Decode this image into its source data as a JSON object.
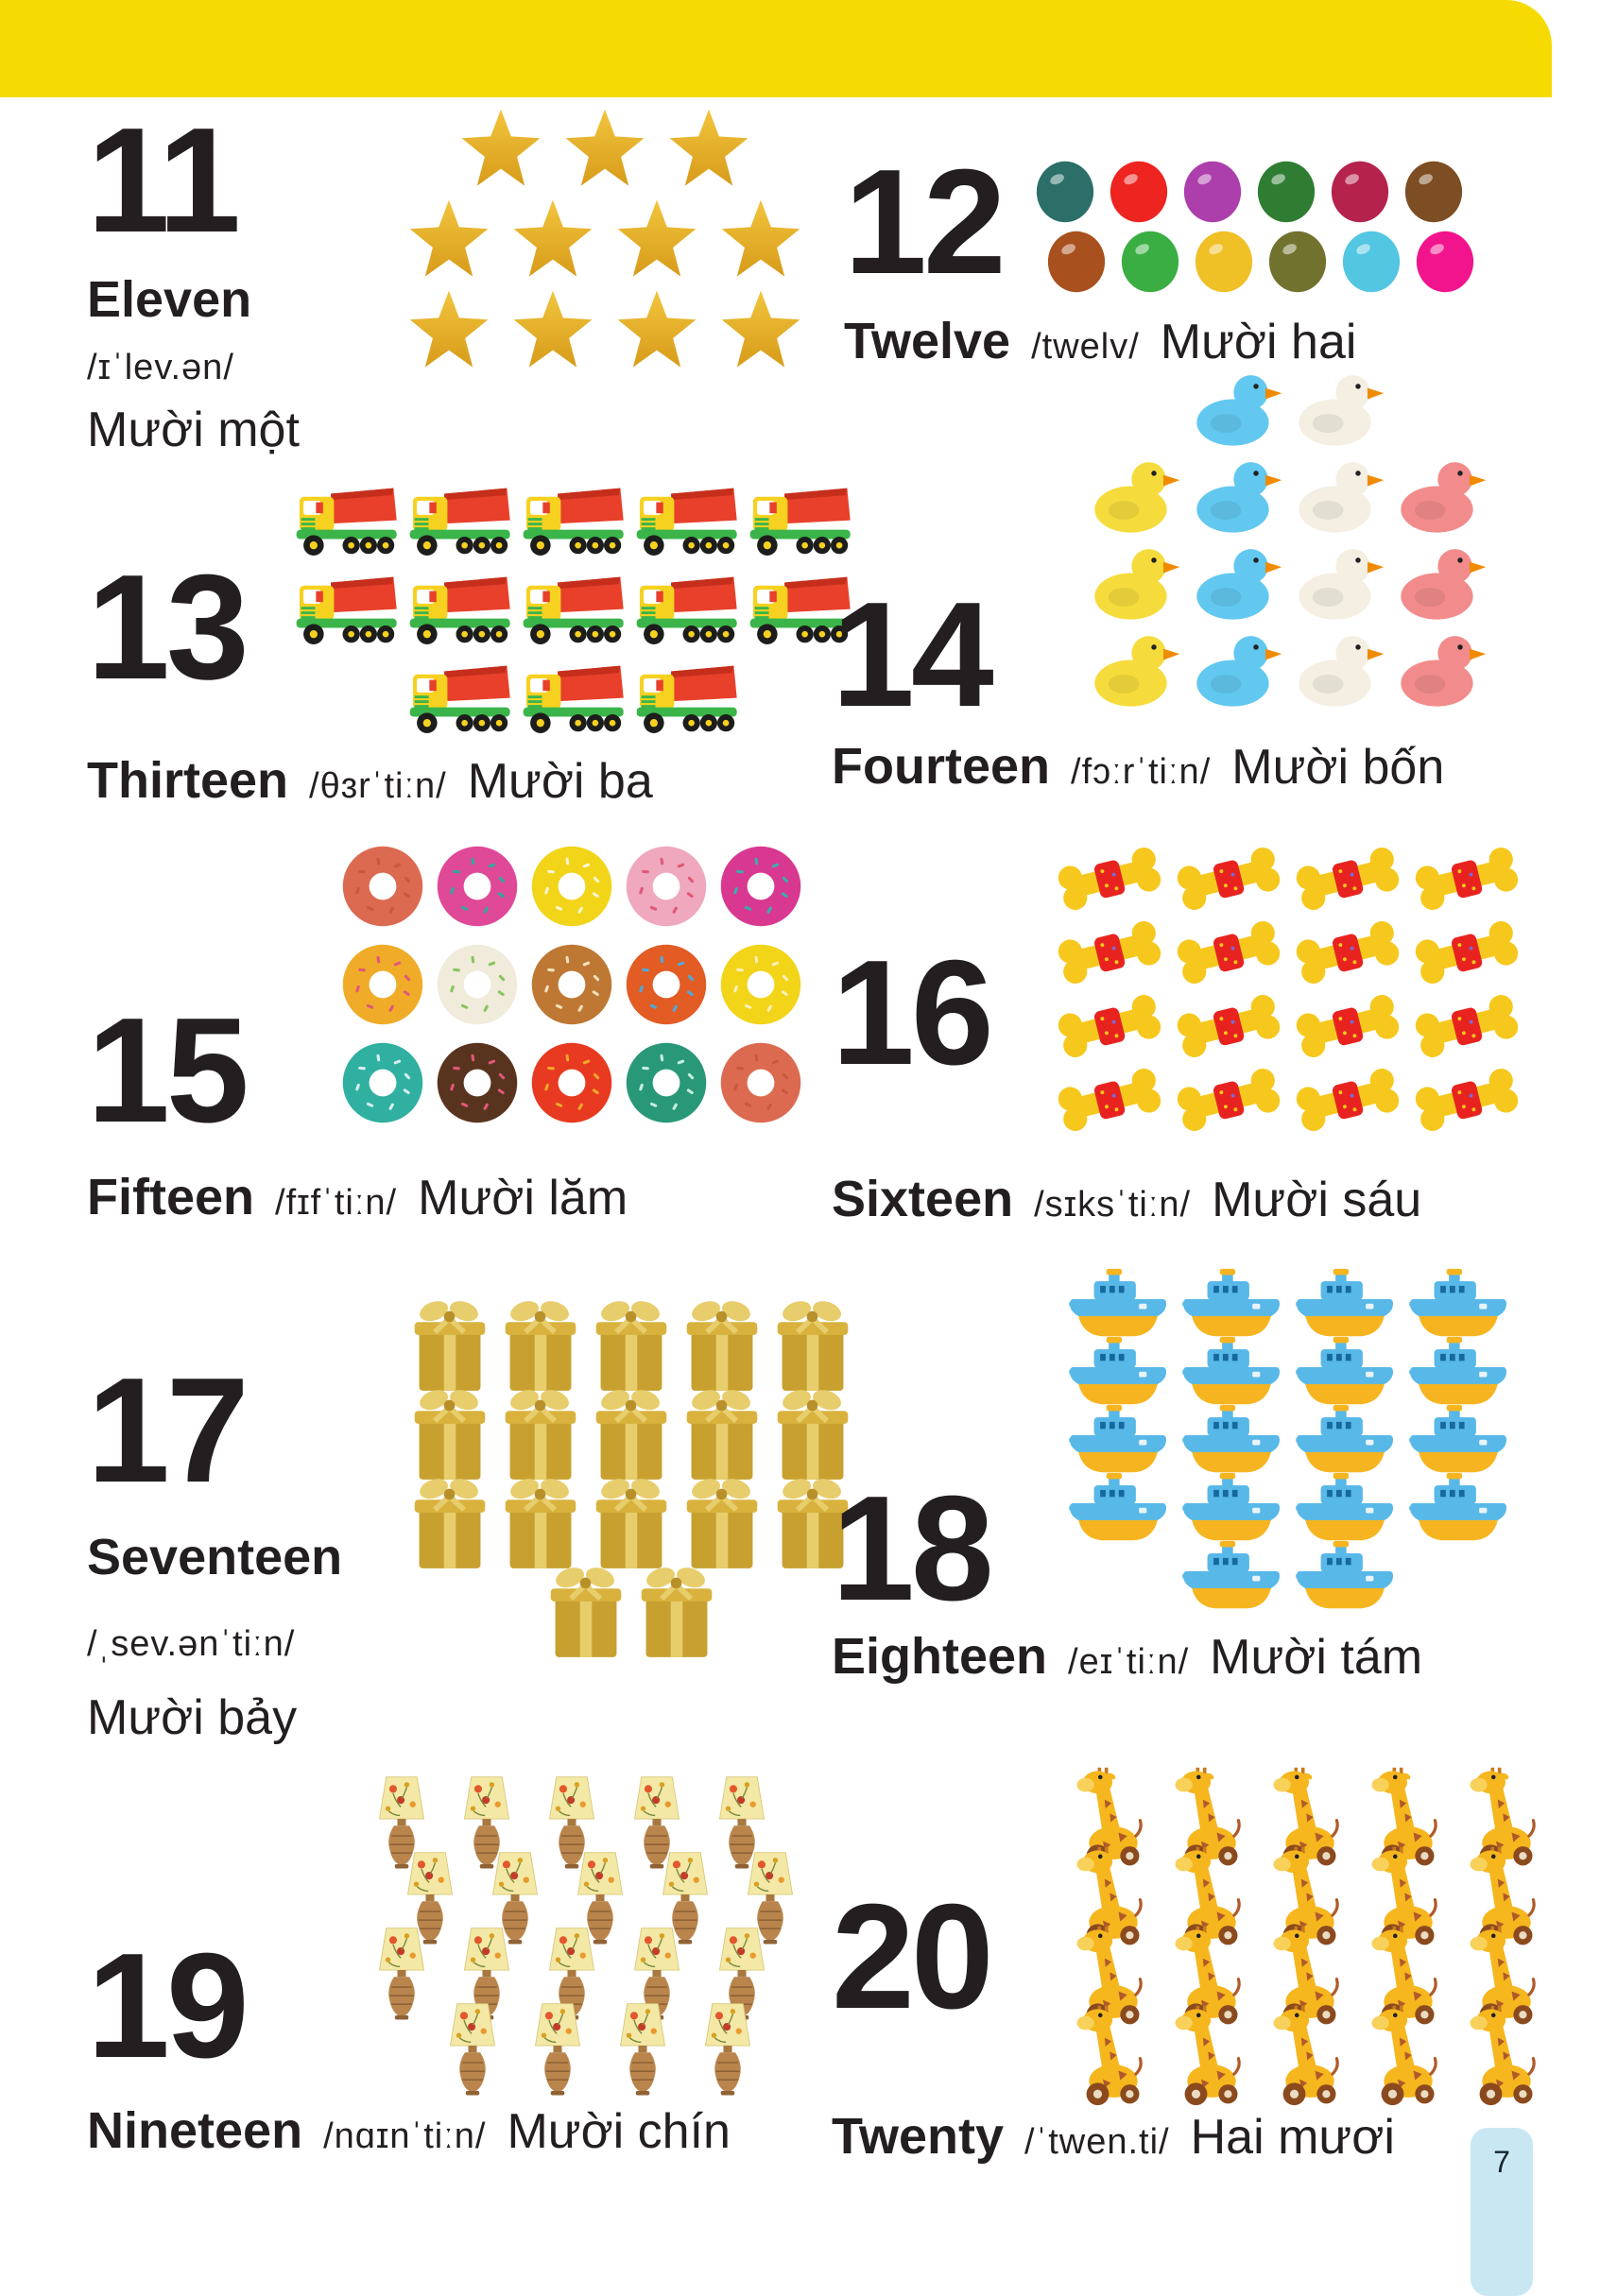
{
  "page": {
    "number": "7"
  },
  "colors": {
    "header_bar": "#F6DB02",
    "page_tab": "#C8E7F3",
    "text": "#231F20"
  },
  "duck_palette": {
    "blue": "#62C8EF",
    "white": "#F4EFE2",
    "yellow": "#F5DC3C",
    "pink": "#F28C8C"
  },
  "sections": [
    {
      "numeral": "11",
      "word": "Eleven",
      "phonetic": "/ɪˈlev.ən/",
      "vietnamese": "Mười một",
      "object": "star",
      "count": 11,
      "rows": [
        3,
        4,
        4
      ]
    },
    {
      "numeral": "12",
      "word": "Twelve",
      "phonetic": "/twelv/",
      "vietnamese": "Mười hai",
      "object": "ball",
      "count": 12,
      "rows": [
        6,
        6
      ],
      "ball_colors": [
        "#2B6F68",
        "#ED2420",
        "#AC3FAC",
        "#2F7D33",
        "#B5234C",
        "#7D4E23",
        "#A8511E",
        "#3AAE42",
        "#F0C027",
        "#72722F",
        "#53C6E2",
        "#F2148C"
      ]
    },
    {
      "numeral": "13",
      "word": "Thirteen",
      "phonetic": "/θɜrˈtiːn/",
      "vietnamese": "Mười ba",
      "object": "truck",
      "count": 13,
      "rows": [
        5,
        5,
        3
      ]
    },
    {
      "numeral": "14",
      "word": "Fourteen",
      "phonetic": "/fɔːrˈtiːn/",
      "vietnamese": "Mười bốn",
      "object": "duck",
      "count": 14,
      "duck_rows": [
        [
          "blue",
          "white"
        ],
        [
          "yellow",
          "blue",
          "white",
          "pink"
        ],
        [
          "yellow",
          "blue",
          "white",
          "pink"
        ],
        [
          "yellow",
          "blue",
          "white",
          "pink"
        ]
      ]
    },
    {
      "numeral": "15",
      "word": "Fifteen",
      "phonetic": "/fɪfˈtiːn/",
      "vietnamese": "Mười lăm",
      "object": "donut",
      "count": 15,
      "rows": [
        5,
        5,
        5
      ],
      "donut_colors": [
        [
          "#DC6A50",
          "#C85840"
        ],
        [
          "#E04898",
          "#30A8A0"
        ],
        [
          "#F2D419",
          "#FCF6D0"
        ],
        [
          "#EFA8BE",
          "#E05878"
        ],
        [
          "#D83890",
          "#38B0A8"
        ],
        [
          "#F0AC28",
          "#E05878"
        ],
        [
          "#F0EBDA",
          "#88C460"
        ],
        [
          "#BE7834",
          "#F2E2BE"
        ],
        [
          "#E25C24",
          "#50A8D8"
        ],
        [
          "#F2D419",
          "#FAF0B8"
        ],
        [
          "#30B0A0",
          "#D8EEF2"
        ],
        [
          "#58341E",
          "#E05878"
        ],
        [
          "#E83A20",
          "#F0A828"
        ],
        [
          "#289878",
          "#C8EEE0"
        ],
        [
          "#DC6A50",
          "#C85840"
        ]
      ]
    },
    {
      "numeral": "16",
      "word": "Sixteen",
      "phonetic": "/sɪksˈtiːn/",
      "vietnamese": "Mười sáu",
      "object": "bone",
      "count": 16,
      "rows": [
        4,
        4,
        4,
        4
      ]
    },
    {
      "numeral": "17",
      "word": "Seventeen",
      "phonetic": "/ˌsev.ənˈtiːn/",
      "vietnamese": "Mười bảy",
      "object": "gift",
      "count": 17,
      "rows": [
        5,
        5,
        5,
        2
      ]
    },
    {
      "numeral": "18",
      "word": "Eighteen",
      "phonetic": "/eɪˈtiːn/",
      "vietnamese": "Mười tám",
      "object": "boat",
      "count": 18,
      "rows": [
        4,
        4,
        4,
        4,
        2
      ]
    },
    {
      "numeral": "19",
      "word": "Nineteen",
      "phonetic": "/nɑɪnˈtiːn/",
      "vietnamese": "Mười chín",
      "object": "lamp",
      "count": 19,
      "rows": [
        5,
        5,
        5,
        4
      ]
    },
    {
      "numeral": "20",
      "word": "Twenty",
      "phonetic": "/ˈtwen.ti/",
      "vietnamese": "Hai mươi",
      "object": "giraffe",
      "count": 20,
      "rows": [
        5,
        5,
        5,
        5
      ]
    }
  ]
}
